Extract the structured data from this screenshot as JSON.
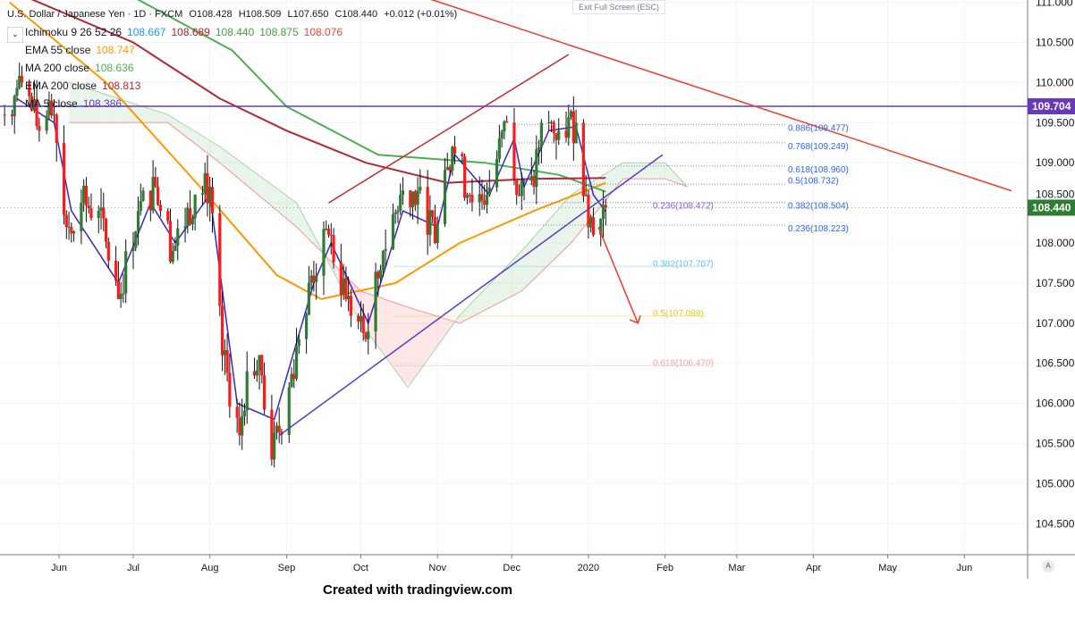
{
  "header": {
    "symbol": "U.S. Dollar / Japanese Yen · 1D · FXCM",
    "open": "O108.428",
    "high": "H108.509",
    "low": "L107.650",
    "close": "C108.440",
    "change": "+0.012 (+0.01%)",
    "exit_fullscreen": "Exit Full Screen (ESC)"
  },
  "indicators": [
    {
      "label": "Ichimoku 9 26 52 26",
      "values": [
        {
          "v": "108.667",
          "color": "#2196f3"
        },
        {
          "v": "108.689",
          "color": "#b71c1c"
        },
        {
          "v": "108.440",
          "color": "#43a047"
        },
        {
          "v": "108.875",
          "color": "#43a047"
        },
        {
          "v": "108.076",
          "color": "#f44336"
        }
      ]
    },
    {
      "label": "EMA 55 close",
      "values": [
        {
          "v": "108.747",
          "color": "#ff9800"
        }
      ]
    },
    {
      "label": "MA 200 close",
      "values": [
        {
          "v": "108.636",
          "color": "#4caf50"
        }
      ]
    },
    {
      "label": "EMA 200 close",
      "values": [
        {
          "v": "108.813",
          "color": "#b22833"
        }
      ]
    },
    {
      "label": "MA 5 close",
      "values": [
        {
          "v": "108.386",
          "color": "#673ab7"
        }
      ]
    }
  ],
  "footer": "Created with tradingview.com",
  "auto_scale": "A",
  "chart_data": {
    "type": "candlestick",
    "ylim": [
      104.2,
      111.05
    ],
    "y_ticks": [
      "111.000",
      "110.500",
      "110.000",
      "109.500",
      "109.000",
      "108.500",
      "108.000",
      "107.500",
      "107.000",
      "106.500",
      "106.000",
      "105.500",
      "105.000",
      "104.500"
    ],
    "x_ticks": [
      {
        "label": "Jun",
        "date": "2019-06-01"
      },
      {
        "label": "Jul",
        "date": "2019-07-01"
      },
      {
        "label": "Aug",
        "date": "2019-08-01"
      },
      {
        "label": "Sep",
        "date": "2019-09-01"
      },
      {
        "label": "Oct",
        "date": "2019-10-01"
      },
      {
        "label": "Nov",
        "date": "2019-11-01"
      },
      {
        "label": "Dec",
        "date": "2019-12-01"
      },
      {
        "label": "2020",
        "date": "2020-01-01"
      },
      {
        "label": "Feb",
        "date": "2020-02-01"
      },
      {
        "label": "Mar",
        "date": "2020-03-01"
      },
      {
        "label": "Apr",
        "date": "2020-04-01"
      },
      {
        "label": "May",
        "date": "2020-05-01"
      },
      {
        "label": "Jun",
        "date": "2020-06-01"
      }
    ],
    "last_price": "108.440",
    "last_price_color": "#2e7d32",
    "horizontal_level": {
      "value": 109.704,
      "label": "109.704",
      "color": "#673ab7"
    },
    "closes": [
      [
        "2019-05-10",
        109.6
      ],
      [
        "2019-05-17",
        110.0
      ],
      [
        "2019-05-24",
        109.4
      ],
      [
        "2019-05-30",
        109.6
      ],
      [
        "2019-06-04",
        108.2
      ],
      [
        "2019-06-10",
        108.5
      ],
      [
        "2019-06-17",
        108.4
      ],
      [
        "2019-06-25",
        107.3
      ],
      [
        "2019-07-03",
        108.4
      ],
      [
        "2019-07-10",
        108.7
      ],
      [
        "2019-07-17",
        107.9
      ],
      [
        "2019-07-26",
        108.6
      ],
      [
        "2019-08-01",
        108.7
      ],
      [
        "2019-08-06",
        106.6
      ],
      [
        "2019-08-13",
        105.6
      ],
      [
        "2019-08-16",
        106.4
      ],
      [
        "2019-08-21",
        106.6
      ],
      [
        "2019-08-26",
        105.3
      ],
      [
        "2019-09-02",
        106.2
      ],
      [
        "2019-09-10",
        107.5
      ],
      [
        "2019-09-18",
        108.1
      ],
      [
        "2019-09-25",
        107.3
      ],
      [
        "2019-10-03",
        106.8
      ],
      [
        "2019-10-10",
        107.9
      ],
      [
        "2019-10-17",
        108.6
      ],
      [
        "2019-10-25",
        108.7
      ],
      [
        "2019-10-31",
        108.0
      ],
      [
        "2019-11-07",
        109.2
      ],
      [
        "2019-11-14",
        108.6
      ],
      [
        "2019-11-21",
        108.6
      ],
      [
        "2019-11-29",
        109.5
      ],
      [
        "2019-12-03",
        108.6
      ],
      [
        "2019-12-10",
        108.7
      ],
      [
        "2019-12-13",
        109.5
      ],
      [
        "2019-12-20",
        109.4
      ],
      [
        "2019-12-27",
        109.5
      ],
      [
        "2019-12-31",
        108.6
      ],
      [
        "2020-01-03",
        108.1
      ],
      [
        "2020-01-08",
        108.44
      ]
    ],
    "series": [
      {
        "name": "EMA 55 close",
        "color": "#ff9800",
        "points": [
          [
            "2019-05-12",
            111.0
          ],
          [
            "2019-06-20",
            110.0
          ],
          [
            "2019-07-28",
            108.7
          ],
          [
            "2019-08-28",
            107.6
          ],
          [
            "2019-09-15",
            107.3
          ],
          [
            "2019-10-15",
            107.5
          ],
          [
            "2019-11-10",
            108.0
          ],
          [
            "2019-12-10",
            108.4
          ],
          [
            "2020-01-08",
            108.75
          ]
        ]
      },
      {
        "name": "MA 200 close",
        "color": "#4caf50",
        "points": [
          [
            "2019-07-02",
            111.05
          ],
          [
            "2019-08-10",
            110.4
          ],
          [
            "2019-09-01",
            109.7
          ],
          [
            "2019-10-08",
            109.1
          ],
          [
            "2019-11-20",
            109.0
          ],
          [
            "2019-12-20",
            108.85
          ],
          [
            "2020-01-08",
            108.64
          ]
        ]
      },
      {
        "name": "EMA 200 close",
        "color": "#b22833",
        "points": [
          [
            "2019-05-20",
            111.05
          ],
          [
            "2019-07-01",
            110.5
          ],
          [
            "2019-08-05",
            109.8
          ],
          [
            "2019-09-01",
            109.4
          ],
          [
            "2019-10-03",
            109.0
          ],
          [
            "2019-11-05",
            108.75
          ],
          [
            "2019-12-10",
            108.8
          ],
          [
            "2020-01-08",
            108.81
          ]
        ]
      },
      {
        "name": "MA 5 close",
        "color": "#3f22c9",
        "points": [
          [
            "2019-05-15",
            109.8
          ],
          [
            "2019-05-30",
            109.5
          ],
          [
            "2019-06-06",
            108.4
          ],
          [
            "2019-06-25",
            107.5
          ],
          [
            "2019-07-08",
            108.5
          ],
          [
            "2019-07-18",
            108.0
          ],
          [
            "2019-08-01",
            108.6
          ],
          [
            "2019-08-12",
            106.0
          ],
          [
            "2019-08-27",
            105.8
          ],
          [
            "2019-09-12",
            107.5
          ],
          [
            "2019-09-19",
            108.0
          ],
          [
            "2019-10-04",
            107.0
          ],
          [
            "2019-10-18",
            108.4
          ],
          [
            "2019-11-01",
            108.2
          ],
          [
            "2019-11-08",
            109.1
          ],
          [
            "2019-11-22",
            108.6
          ],
          [
            "2019-12-02",
            109.3
          ],
          [
            "2019-12-06",
            108.7
          ],
          [
            "2019-12-16",
            109.4
          ],
          [
            "2019-12-27",
            109.45
          ],
          [
            "2020-01-03",
            108.6
          ],
          [
            "2020-01-08",
            108.39
          ]
        ]
      }
    ],
    "cloud": {
      "span_a": [
        [
          "2019-06-05",
          110.0
        ],
        [
          "2019-07-15",
          109.6
        ],
        [
          "2019-08-05",
          109.2
        ],
        [
          "2019-09-05",
          108.5
        ],
        [
          "2019-10-01",
          107.0
        ],
        [
          "2019-10-20",
          106.2
        ],
        [
          "2019-11-10",
          107.1
        ],
        [
          "2019-12-05",
          107.9
        ],
        [
          "2019-12-25",
          108.6
        ],
        [
          "2020-01-15",
          109.0
        ],
        [
          "2020-02-01",
          109.0
        ],
        [
          "2020-02-10",
          108.7
        ]
      ],
      "span_b": [
        [
          "2019-06-05",
          109.5
        ],
        [
          "2019-07-15",
          109.5
        ],
        [
          "2019-08-05",
          109.0
        ],
        [
          "2019-09-05",
          108.2
        ],
        [
          "2019-10-01",
          107.4
        ],
        [
          "2019-10-20",
          107.2
        ],
        [
          "2019-11-10",
          107.0
        ],
        [
          "2019-12-05",
          107.4
        ],
        [
          "2019-12-25",
          108.0
        ],
        [
          "2020-01-15",
          108.8
        ],
        [
          "2020-02-01",
          108.8
        ],
        [
          "2020-02-10",
          108.7
        ]
      ]
    },
    "fib_right": [
      {
        "label": "0.886(109.477)",
        "value": 109.477
      },
      {
        "label": "0.768(109.249)",
        "value": 109.249
      },
      {
        "label": "0.618(108.960)",
        "value": 108.96
      },
      {
        "label": "0.5(108.732)",
        "value": 108.732
      },
      {
        "label": "0.382(108.504)",
        "value": 108.504
      },
      {
        "label": "0.236(108.223)",
        "value": 108.223
      }
    ],
    "fib_left": [
      {
        "label": "0.236(108.472)",
        "value": 108.472,
        "color": "#8e5cd9"
      },
      {
        "label": "0.382(107.707)",
        "value": 107.707,
        "color": "#5fc4e0"
      },
      {
        "label": "0.5(107.088)",
        "value": 107.088,
        "color": "#f5c518"
      },
      {
        "label": "0.618(106.470)",
        "value": 106.47,
        "color": "#f4a6a6"
      }
    ],
    "trendlines": [
      {
        "name": "support",
        "color": "#5b3cc4",
        "from": [
          "2019-08-29",
          105.6
        ],
        "to": [
          "2020-01-31",
          109.1
        ]
      },
      {
        "name": "channel-top",
        "color": "#c62828",
        "from": [
          "2019-09-18",
          108.5
        ],
        "to": [
          "2019-12-24",
          110.35
        ]
      },
      {
        "name": "long-resistance",
        "color": "#ef3b2c",
        "from": [
          "2019-10-28",
          111.05
        ],
        "to": [
          "2020-06-20",
          108.65
        ]
      },
      {
        "name": "forecast-arrow",
        "color": "#ef3b2c",
        "from": [
          "2020-01-05",
          108.2
        ],
        "to": [
          "2020-01-21",
          107.0
        ]
      }
    ]
  }
}
